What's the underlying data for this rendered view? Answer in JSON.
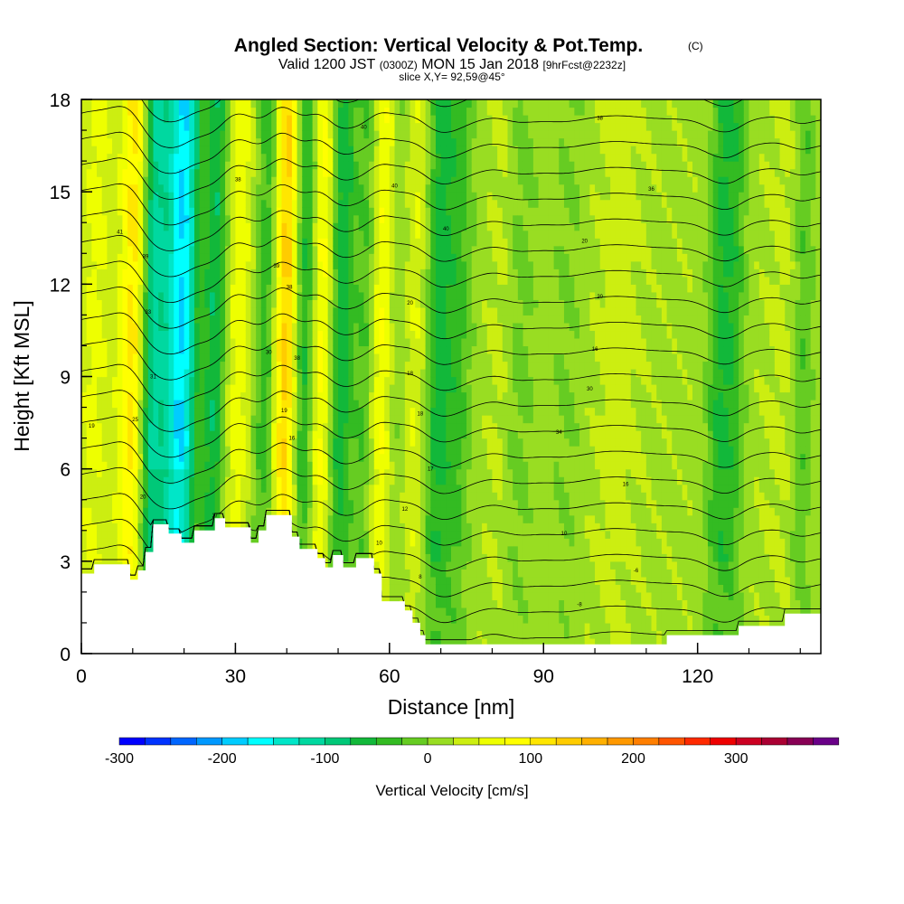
{
  "chart_data": {
    "type": "heatmap",
    "title": "Angled Section: Vertical Velocity & Pot.Temp.",
    "title_units": "(C)",
    "subtitle": {
      "valid": "Valid 1200 JST",
      "utc": "(0300Z)",
      "date": "MON 15 Jan 2018",
      "forecast": "[9hrFcst@2232z]"
    },
    "slice": "slice X,Y= 92,59@45°",
    "xlabel": "Distance [nm]",
    "ylabel": "Height [Kft MSL]",
    "xlim": [
      0,
      144
    ],
    "ylim": [
      0,
      18
    ],
    "xticks": [
      0,
      30,
      60,
      90,
      120
    ],
    "yticks": [
      0,
      3,
      6,
      9,
      12,
      15,
      18
    ],
    "colorbar": {
      "title": "Vertical Velocity [cm/s]",
      "range": [
        -300,
        350
      ],
      "step": 25,
      "tick_values": [
        -300,
        -200,
        -100,
        0,
        100,
        200,
        300
      ],
      "colors": [
        "#0000ff",
        "#0033ff",
        "#0066ff",
        "#0099ff",
        "#00ccff",
        "#00ffff",
        "#00e6c8",
        "#00d8a0",
        "#00c878",
        "#12b83a",
        "#33bb22",
        "#66cc22",
        "#99dd22",
        "#ccee11",
        "#eeff00",
        "#ffff00",
        "#ffe600",
        "#ffcc00",
        "#ffb000",
        "#ff9900",
        "#ff7f00",
        "#ff5500",
        "#ff2a00",
        "#ee0000",
        "#cc0022",
        "#aa0033",
        "#880055",
        "#6a0088"
      ]
    },
    "updraft_bands": [
      {
        "x": 2,
        "w": 3,
        "v": 40
      },
      {
        "x": 10,
        "w": 3,
        "v": 110
      },
      {
        "x": 23,
        "w": 2.5,
        "v": 60
      },
      {
        "x": 30,
        "w": 2.5,
        "v": 50
      },
      {
        "x": 39,
        "w": 3,
        "v": 140
      },
      {
        "x": 46,
        "w": 2.5,
        "v": 90
      },
      {
        "x": 58,
        "w": 3,
        "v": 70
      },
      {
        "x": 64,
        "w": 3,
        "v": 40
      },
      {
        "x": 81,
        "w": 2,
        "v": 15
      },
      {
        "x": 104,
        "w": 4,
        "v": 20
      },
      {
        "x": 136,
        "w": 3,
        "v": 15
      }
    ],
    "downdraft_bands": [
      {
        "x": 13,
        "w": 2.5,
        "v": -140
      },
      {
        "x": 19,
        "w": 3.5,
        "v": -200
      },
      {
        "x": 25,
        "w": 2.5,
        "v": -110
      },
      {
        "x": 36,
        "w": 2.5,
        "v": -90
      },
      {
        "x": 43,
        "w": 2.5,
        "v": -110
      },
      {
        "x": 50,
        "w": 2.5,
        "v": -90
      },
      {
        "x": 55,
        "w": 2,
        "v": -60
      },
      {
        "x": 61,
        "w": 2.5,
        "v": -50
      },
      {
        "x": 69,
        "w": 2.5,
        "v": -80
      },
      {
        "x": 73,
        "w": 2.5,
        "v": -50
      },
      {
        "x": 85,
        "w": 3,
        "v": -25
      },
      {
        "x": 94,
        "w": 3,
        "v": -20
      },
      {
        "x": 124,
        "w": 2.5,
        "v": -70
      },
      {
        "x": 127,
        "w": 2,
        "v": -40
      },
      {
        "x": 140,
        "w": 2,
        "v": -40
      }
    ],
    "terrain_top": [
      [
        0,
        2.6
      ],
      [
        2.5,
        2.6
      ],
      [
        2.5,
        2.9
      ],
      [
        9.5,
        2.9
      ],
      [
        9.5,
        2.4
      ],
      [
        11,
        2.4
      ],
      [
        11,
        2.7
      ],
      [
        12.5,
        2.7
      ],
      [
        12.5,
        3.3
      ],
      [
        14,
        3.3
      ],
      [
        14,
        4.2
      ],
      [
        17,
        4.2
      ],
      [
        17,
        3.9
      ],
      [
        19.5,
        3.9
      ],
      [
        19.5,
        3.6
      ],
      [
        22,
        3.6
      ],
      [
        22,
        4.0
      ],
      [
        26,
        4.0
      ],
      [
        26,
        4.4
      ],
      [
        28,
        4.4
      ],
      [
        28,
        4.1
      ],
      [
        33,
        4.1
      ],
      [
        33,
        3.6
      ],
      [
        34.5,
        3.6
      ],
      [
        34.5,
        4.0
      ],
      [
        36,
        4.0
      ],
      [
        36,
        4.5
      ],
      [
        41,
        4.5
      ],
      [
        41,
        3.8
      ],
      [
        42.5,
        3.8
      ],
      [
        42.5,
        3.4
      ],
      [
        46,
        3.4
      ],
      [
        46,
        3.1
      ],
      [
        47.5,
        3.1
      ],
      [
        47.5,
        2.8
      ],
      [
        49,
        2.8
      ],
      [
        49,
        3.2
      ],
      [
        51,
        3.2
      ],
      [
        51,
        2.8
      ],
      [
        53.5,
        2.8
      ],
      [
        53.5,
        3.1
      ],
      [
        57,
        3.1
      ],
      [
        57,
        2.6
      ],
      [
        58.5,
        2.6
      ],
      [
        58.5,
        1.7
      ],
      [
        63,
        1.7
      ],
      [
        63,
        1.4
      ],
      [
        64.5,
        1.4
      ],
      [
        64.5,
        1.0
      ],
      [
        66,
        1.0
      ],
      [
        66,
        0.6
      ],
      [
        67,
        0.6
      ],
      [
        67,
        0.3
      ],
      [
        114,
        0.3
      ],
      [
        114,
        0.6
      ],
      [
        128,
        0.6
      ],
      [
        128,
        0.9
      ],
      [
        137,
        0.9
      ],
      [
        137,
        1.3
      ],
      [
        144,
        1.3
      ]
    ],
    "theta_contours": {
      "levels_C": [
        -2,
        0,
        2,
        4,
        6,
        8,
        10,
        12,
        14,
        16,
        18,
        20,
        22,
        24,
        26,
        28,
        30,
        32,
        34,
        36,
        38,
        40
      ],
      "labels": [
        {
          "x": 97,
          "y": 1.6,
          "text": "-8"
        },
        {
          "x": 108,
          "y": 2.7,
          "text": "-6"
        },
        {
          "x": 94,
          "y": 3.9,
          "text": "10"
        },
        {
          "x": 106,
          "y": 5.5,
          "text": "16"
        },
        {
          "x": 93,
          "y": 7.2,
          "text": "34"
        },
        {
          "x": 99,
          "y": 8.6,
          "text": "30"
        },
        {
          "x": 100,
          "y": 9.9,
          "text": "16"
        },
        {
          "x": 101,
          "y": 11.6,
          "text": "20"
        },
        {
          "x": 98,
          "y": 13.4,
          "text": "20"
        },
        {
          "x": 111,
          "y": 15.1,
          "text": "36"
        },
        {
          "x": 101,
          "y": 17.4,
          "text": "38"
        },
        {
          "x": 55,
          "y": 17.1,
          "text": "40"
        },
        {
          "x": 61,
          "y": 15.2,
          "text": "40"
        },
        {
          "x": 30.5,
          "y": 15.4,
          "text": "38"
        },
        {
          "x": 7.5,
          "y": 13.7,
          "text": "41"
        },
        {
          "x": 12.5,
          "y": 12.9,
          "text": "39"
        },
        {
          "x": 13,
          "y": 11.1,
          "text": "33"
        },
        {
          "x": 14,
          "y": 9.0,
          "text": "31"
        },
        {
          "x": 10.5,
          "y": 7.6,
          "text": "25"
        },
        {
          "x": 2,
          "y": 7.4,
          "text": "19"
        },
        {
          "x": 12,
          "y": 5.1,
          "text": "20"
        },
        {
          "x": 38,
          "y": 12.6,
          "text": "39"
        },
        {
          "x": 40.5,
          "y": 11.9,
          "text": "38"
        },
        {
          "x": 36.5,
          "y": 9.8,
          "text": "30"
        },
        {
          "x": 42,
          "y": 9.6,
          "text": "38"
        },
        {
          "x": 39.5,
          "y": 7.9,
          "text": "19"
        },
        {
          "x": 41,
          "y": 7.0,
          "text": "16"
        },
        {
          "x": 26,
          "y": 4.5,
          "text": "17"
        },
        {
          "x": 64,
          "y": 11.4,
          "text": "20"
        },
        {
          "x": 64,
          "y": 9.1,
          "text": "18"
        },
        {
          "x": 66,
          "y": 7.8,
          "text": "18"
        },
        {
          "x": 68,
          "y": 6.0,
          "text": "17"
        },
        {
          "x": 63,
          "y": 4.7,
          "text": "12"
        },
        {
          "x": 58,
          "y": 3.6,
          "text": "10"
        },
        {
          "x": 66,
          "y": 2.5,
          "text": "8"
        },
        {
          "x": 71,
          "y": 13.8,
          "text": "40"
        }
      ]
    }
  }
}
